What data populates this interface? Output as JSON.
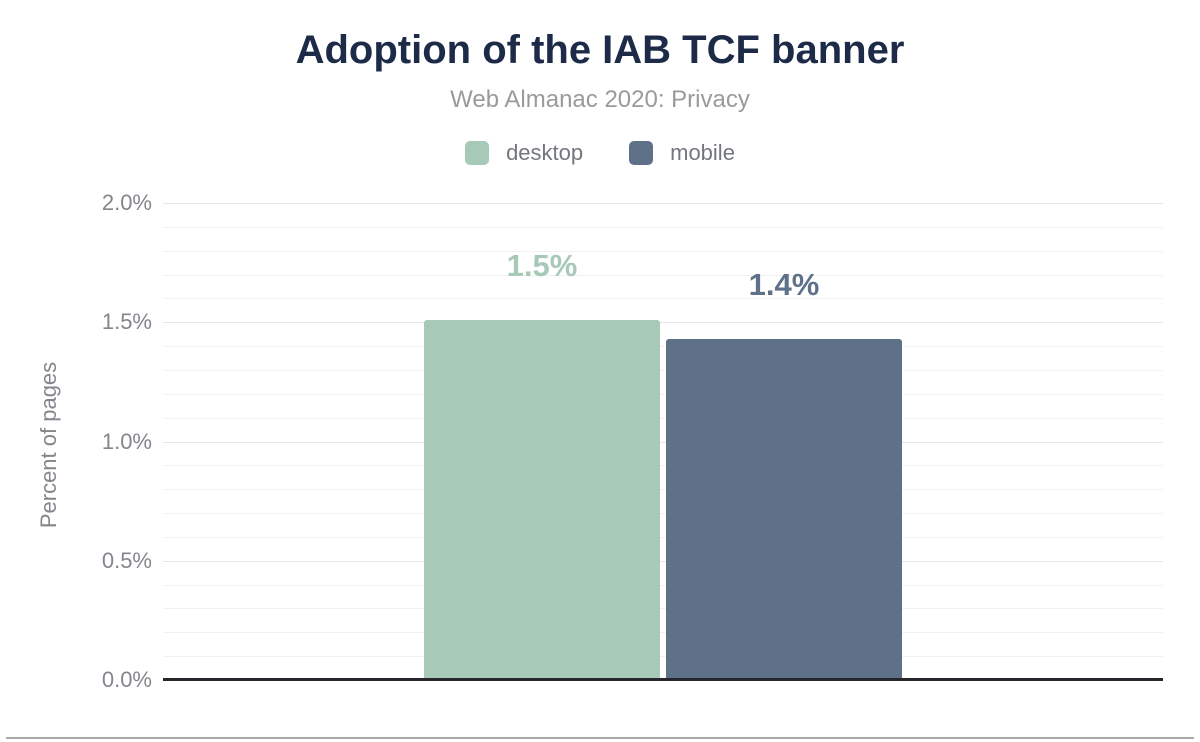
{
  "chart_data": {
    "type": "bar",
    "title": "Adoption of the IAB TCF banner",
    "subtitle": "Web Almanac 2020: Privacy",
    "ylabel": "Percent of pages",
    "ylim": [
      0,
      2
    ],
    "yticks": [
      {
        "value": 0,
        "label": "0.0%"
      },
      {
        "value": 0.5,
        "label": "0.5%"
      },
      {
        "value": 1,
        "label": "1.0%"
      },
      {
        "value": 1.5,
        "label": "1.5%"
      },
      {
        "value": 2,
        "label": "2.0%"
      }
    ],
    "grid": {
      "minor_step": 0.1,
      "major_step": 0.5,
      "visible": true
    },
    "legend_position": "top",
    "series": [
      {
        "name": "desktop",
        "value": 1.51,
        "data_label": "1.5%",
        "color": "#a7c9b8"
      },
      {
        "name": "mobile",
        "value": 1.43,
        "data_label": "1.4%",
        "color": "#5f7089"
      }
    ],
    "colors": {
      "title_text": "#1d2b49",
      "subtitle_text": "#9a9a9a",
      "tick_text": "#85858d",
      "axis_baseline": "#26262c",
      "grid_major": "#e6e6e6",
      "grid_minor": "#f2f2f2"
    }
  }
}
